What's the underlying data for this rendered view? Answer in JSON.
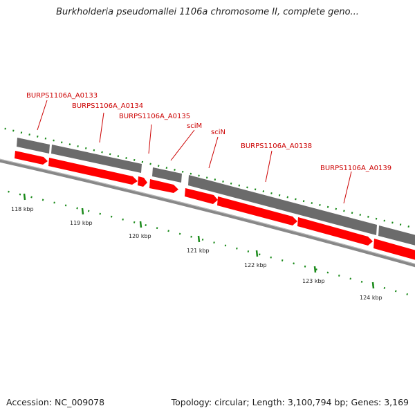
{
  "header": {
    "title": "Burkholderia pseudomallei 1106a chromosome II, complete geno..."
  },
  "footer": {
    "accession": "Accession: NC_009078",
    "summary": "Topology: circular; Length: 3,100,794 bp; Genes: 3,169"
  },
  "colors": {
    "gene_grey": "#6b6b6b",
    "cds_red": "#ff0000",
    "label_red": "#cc0000",
    "tick_green": "#1a8a1a",
    "backbone": "#888888"
  },
  "axis": {
    "ticks": [
      "118 kbp",
      "119 kbp",
      "120 kbp",
      "121 kbp",
      "122 kbp",
      "123 kbp",
      "124 kbp"
    ]
  },
  "genes": [
    {
      "label": "BURPS1106A_A0133"
    },
    {
      "label": "BURPS1106A_A0134"
    },
    {
      "label": "BURPS1106A_A0135"
    },
    {
      "label": "sciM"
    },
    {
      "label": "sciN"
    },
    {
      "label": "BURPS1106A_A0138"
    },
    {
      "label": "BURPS1106A_A0139"
    }
  ]
}
